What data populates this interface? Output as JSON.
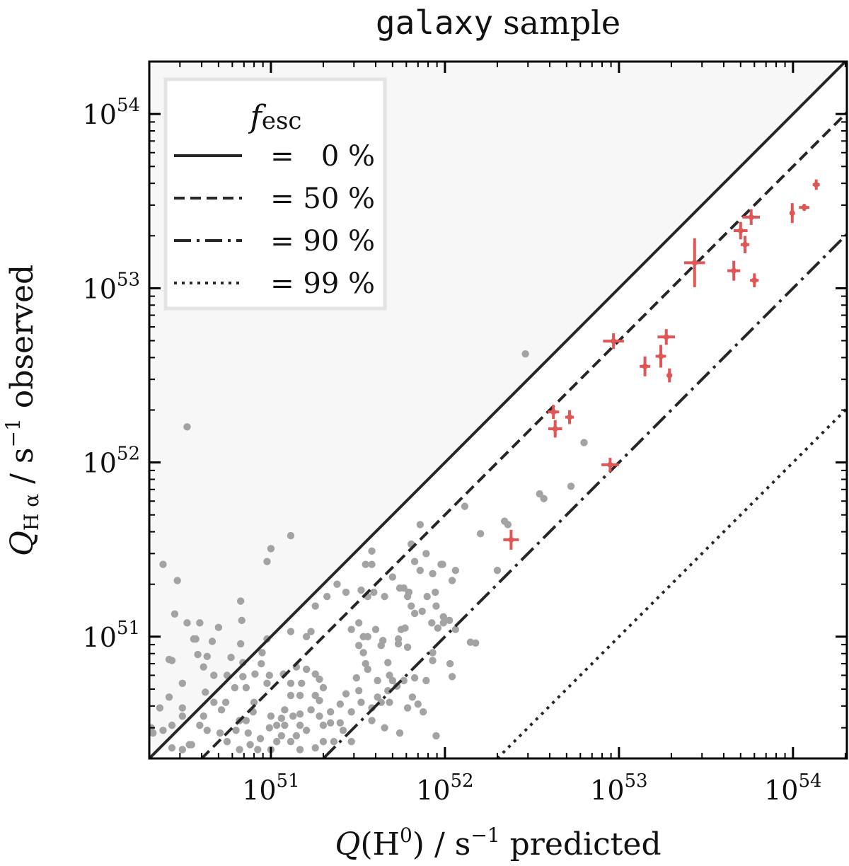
{
  "chart_data": {
    "type": "scatter",
    "title_mono": "galaxy",
    "title_rest": "sample",
    "xlabel": {
      "q": "Q",
      "paren_open": "(H",
      "sup": "0",
      "paren_close": ")",
      "unit": " / s",
      "unit_sup": "−1",
      "suffix": " predicted"
    },
    "ylabel": {
      "q": "Q",
      "sub": "H α",
      "unit": " / s",
      "unit_sup": "−1",
      "suffix": " observed"
    },
    "xscale": "log",
    "yscale": "log",
    "xlim": [
      2e+50,
      2.04e+54
    ],
    "ylim": [
      2e+50,
      2e+54
    ],
    "xticks": [
      {
        "value": 1e+51,
        "base": "10",
        "exp": "51"
      },
      {
        "value": 1e+52,
        "base": "10",
        "exp": "52"
      },
      {
        "value": 1e+53,
        "base": "10",
        "exp": "53"
      },
      {
        "value": 1e+54,
        "base": "10",
        "exp": "54"
      }
    ],
    "yticks": [
      {
        "value": 1e+51,
        "base": "10",
        "exp": "51"
      },
      {
        "value": 1e+52,
        "base": "10",
        "exp": "52"
      },
      {
        "value": 1e+53,
        "base": "10",
        "exp": "53"
      },
      {
        "value": 1e+54,
        "base": "10",
        "exp": "54"
      }
    ],
    "grid": false,
    "shaded_region": {
      "description_color": "#f7f7f7",
      "above_line_fesc": 0
    },
    "legend": {
      "placement": "top-left",
      "title_f": "f",
      "title_sub": "esc",
      "entries": [
        {
          "label": "=   0 %",
          "fesc": 0.0,
          "style": "solid"
        },
        {
          "label": "= 50 %",
          "fesc": 0.5,
          "style": "dashed"
        },
        {
          "label": "= 90 %",
          "fesc": 0.9,
          "style": "dashdot"
        },
        {
          "label": "= 99 %",
          "fesc": 0.99,
          "style": "dotted"
        }
      ]
    },
    "colors": {
      "lines": "#262626",
      "highlight": "#e05555",
      "background_points": "#a3a3a3",
      "shade": "#f7f7f7",
      "legend_border": "#e3e3e3"
    },
    "highlight_points": [
      {
        "x": 1.36e+54,
        "y": 3.93e+53,
        "xerr_dex": 0.02,
        "yerr_dex": 0.03
      },
      {
        "x": 1.16e+54,
        "y": 2.91e+53,
        "xerr_dex": 0.03,
        "yerr_dex": 0.02
      },
      {
        "x": 9.9e+53,
        "y": 2.7e+53,
        "xerr_dex": 0.012,
        "yerr_dex": 0.057
      },
      {
        "x": 5.75e+53,
        "y": 2.56e+53,
        "xerr_dex": 0.05,
        "yerr_dex": 0.045
      },
      {
        "x": 5e+53,
        "y": 2.14e+53,
        "xerr_dex": 0.04,
        "yerr_dex": 0.05
      },
      {
        "x": 5.3e+53,
        "y": 1.78e+53,
        "xerr_dex": 0.025,
        "yerr_dex": 0.05
      },
      {
        "x": 2.72e+53,
        "y": 1.4e+53,
        "xerr_dex": 0.06,
        "yerr_dex": 0.14
      },
      {
        "x": 4.57e+53,
        "y": 1.26e+53,
        "xerr_dex": 0.037,
        "yerr_dex": 0.057
      },
      {
        "x": 6e+53,
        "y": 1.11e+53,
        "xerr_dex": 0.025,
        "yerr_dex": 0.04
      },
      {
        "x": 9.3e+52,
        "y": 4.97e+52,
        "xerr_dex": 0.06,
        "yerr_dex": 0.045
      },
      {
        "x": 1.87e+53,
        "y": 5.25e+52,
        "xerr_dex": 0.05,
        "yerr_dex": 0.045
      },
      {
        "x": 1.74e+53,
        "y": 4.07e+52,
        "xerr_dex": 0.03,
        "yerr_dex": 0.065
      },
      {
        "x": 1.41e+53,
        "y": 3.56e+52,
        "xerr_dex": 0.03,
        "yerr_dex": 0.057
      },
      {
        "x": 1.95e+53,
        "y": 3.16e+52,
        "xerr_dex": 0.016,
        "yerr_dex": 0.04
      },
      {
        "x": 4.2e+52,
        "y": 1.95e+52,
        "xerr_dex": 0.033,
        "yerr_dex": 0.04
      },
      {
        "x": 5.2e+52,
        "y": 1.82e+52,
        "xerr_dex": 0.025,
        "yerr_dex": 0.04
      },
      {
        "x": 4.3e+52,
        "y": 1.56e+52,
        "xerr_dex": 0.04,
        "yerr_dex": 0.05
      },
      {
        "x": 8.9e+52,
        "y": 9.7e+51,
        "xerr_dex": 0.05,
        "yerr_dex": 0.04
      },
      {
        "x": 2.4e+52,
        "y": 3.6e+51,
        "xerr_dex": 0.045,
        "yerr_dex": 0.057
      }
    ],
    "background_points": [
      [
        2.9e+52,
        4.2e+52
      ],
      [
        3.3e+50,
        1.6e+52
      ],
      [
        6.3e+52,
        1.3e+52
      ],
      [
        5.3e+52,
        7.3e+51
      ],
      [
        3.5e+52,
        6.6e+51
      ],
      [
        3.7e+52,
        6.2e+51
      ],
      [
        1.3e+52,
        5.6e+51
      ],
      [
        2.2e+52,
        4.6e+51
      ],
      [
        2.3e+52,
        4.4e+51
      ],
      [
        1.6e+52,
        3.9e+51
      ],
      [
        2e+52,
        2.4e+51
      ],
      [
        1.3e+51,
        3.8e+51
      ],
      [
        1e+51,
        3.2e+51
      ],
      [
        9.5e+50,
        2.7e+51
      ],
      [
        2.4e+50,
        2.6e+51
      ],
      [
        2.9e+50,
        2.1e+51
      ],
      [
        6.7e+50,
        1.6e+51
      ],
      [
        9.5e+51,
        2.6e+51
      ],
      [
        7.2e+51,
        2.4e+51
      ],
      [
        6.2e+51,
        1.8e+51
      ],
      [
        8.9e+51,
        1.5e+51
      ],
      [
        5.6e+51,
        1.1e+51
      ],
      [
        1.4e+52,
        9.3e+50
      ],
      [
        9.8e+51,
        1.2e+51
      ],
      [
        8.5e+51,
        8.1e+50
      ],
      [
        2.8e+50,
        1.35e+51
      ],
      [
        3.3e+50,
        1.2e+51
      ],
      [
        3.6e+50,
        9.7e+50
      ],
      [
        2.7e+50,
        7.3e+50
      ],
      [
        2.3e+50,
        3.9e+50
      ],
      [
        2e+50,
        3e+50
      ],
      [
        3.9e+50,
        1.2e+51
      ],
      [
        5e+50,
        1.13e+51
      ],
      [
        3.7e+50,
        9.7e+50
      ],
      [
        4.6e+50,
        9.4e+50
      ],
      [
        6.8e+50,
        1.24e+51
      ],
      [
        6.7e+50,
        9.1e+50
      ],
      [
        2.6e+50,
        7.4e+50
      ],
      [
        3.8e+50,
        7.9e+50
      ],
      [
        4.3e+50,
        7.7e+50
      ],
      [
        4.1e+50,
        6.7e+50
      ],
      [
        5.9e+50,
        7.6e+50
      ],
      [
        6.9e+50,
        7.1e+50
      ],
      [
        4.7e+50,
        6e+50
      ],
      [
        5.6e+50,
        6e+50
      ],
      [
        3.1e+50,
        5.4e+50
      ],
      [
        2.6e+50,
        4.5e+50
      ],
      [
        4.2e+50,
        4.8e+50
      ],
      [
        3.1e+50,
        3.9e+50
      ],
      [
        3.1e+50,
        3.5e+50
      ],
      [
        2.7e+50,
        3.1e+50
      ],
      [
        2.4e+50,
        2.9e+50
      ],
      [
        2.7e+50,
        2.3e+50
      ],
      [
        3.5e+50,
        2.4e+50
      ],
      [
        3.9e+50,
        3.1e+50
      ],
      [
        4.3e+50,
        2.9e+50
      ],
      [
        4.7e+50,
        4.2e+50
      ],
      [
        5.5e+50,
        4.2e+50
      ],
      [
        5.2e+50,
        3.8e+50
      ],
      [
        6.9e+50,
        5.9e+50
      ],
      [
        8.1e+50,
        6.1e+50
      ],
      [
        8.8e+50,
        7e+50
      ],
      [
        8.9e+50,
        8.1e+50
      ],
      [
        9.5e+50,
        9.7e+50
      ],
      [
        1.3e+51,
        1.07e+51
      ],
      [
        1.6e+51,
        1e+51
      ],
      [
        1.7e+51,
        1.07e+51
      ],
      [
        1.8e+51,
        1.5e+51
      ],
      [
        2.1e+51,
        1.7e+51
      ],
      [
        2.4e+51,
        2e+51
      ],
      [
        2.7e+51,
        1.8e+51
      ],
      [
        3.3e+51,
        1.85e+51
      ],
      [
        3.8e+51,
        3.1e+51
      ],
      [
        3.5e+51,
        2.6e+51
      ],
      [
        3.8e+51,
        2.6e+51
      ],
      [
        3.6e+51,
        1.7e+51
      ],
      [
        3.9e+51,
        1.8e+51
      ],
      [
        4.5e+51,
        1.7e+51
      ],
      [
        5e+51,
        2.2e+51
      ],
      [
        5.5e+51,
        1.9e+51
      ],
      [
        5.8e+51,
        1.9e+51
      ],
      [
        6.2e+51,
        1.8e+51
      ],
      [
        6.1e+51,
        1.7e+51
      ],
      [
        6.4e+51,
        1.5e+51
      ],
      [
        6.4e+51,
        3.4e+51
      ],
      [
        6.7e+51,
        2.7e+51
      ],
      [
        7.8e+51,
        3e+51
      ],
      [
        7.2e+51,
        4.4e+51
      ],
      [
        8.5e+51,
        2.3e+51
      ],
      [
        9.7e+51,
        2.6e+51
      ],
      [
        1.15e+52,
        2.4e+51
      ],
      [
        1.1e+52,
        2.1e+51
      ],
      [
        8.8e+51,
        1.8e+51
      ],
      [
        7.9e+51,
        1.7e+51
      ],
      [
        7.4e+51,
        1.4e+51
      ],
      [
        6.7e+51,
        1.36e+51
      ],
      [
        8.4e+51,
        1.2e+51
      ],
      [
        9.8e+51,
        1.3e+51
      ],
      [
        1.06e+52,
        1.24e+51
      ],
      [
        9.1e+51,
        1.12e+51
      ],
      [
        1.15e+52,
        1.1e+51
      ],
      [
        1.5e+52,
        9.2e+50
      ],
      [
        1.07e+52,
        7e+50
      ],
      [
        1.1e+52,
        5.9e+50
      ],
      [
        8.5e+51,
        7.3e+50
      ],
      [
        7.8e+51,
        5.6e+50
      ],
      [
        6.7e+51,
        5.8e+50
      ],
      [
        5.9e+51,
        1.12e+51
      ],
      [
        5.4e+51,
        9.7e+50
      ],
      [
        5.4e+51,
        9.1e+50
      ],
      [
        6.1e+51,
        8.7e+50
      ],
      [
        4.4e+51,
        9.5e+50
      ],
      [
        4.3e+51,
        8.9e+50
      ],
      [
        4e+51,
        1.1e+51
      ],
      [
        3.6e+51,
        1e+51
      ],
      [
        3.4e+51,
        1e+51
      ],
      [
        3.2e+51,
        1.2e+51
      ],
      [
        2.9e+51,
        1.1e+51
      ],
      [
        3.2e+51,
        8.9e+50
      ],
      [
        3.4e+51,
        8.1e+50
      ],
      [
        3.5e+51,
        7e+50
      ],
      [
        3.6e+51,
        6.5e+50
      ],
      [
        4.7e+51,
        7.1e+50
      ],
      [
        4.8e+51,
        6e+50
      ],
      [
        5e+51,
        5.6e+50
      ],
      [
        5.8e+51,
        5.6e+50
      ],
      [
        5.3e+51,
        5.2e+50
      ],
      [
        4.7e+51,
        4.9e+50
      ],
      [
        4.1e+51,
        5.6e+50
      ],
      [
        4.1e+51,
        4.5e+50
      ],
      [
        4.3e+51,
        4.2e+50
      ],
      [
        4.8e+51,
        4.2e+50
      ],
      [
        3.8e+51,
        3.9e+50
      ],
      [
        3.2e+51,
        4.9e+50
      ],
      [
        3.1e+51,
        5.8e+50
      ],
      [
        2.7e+51,
        4.7e+50
      ],
      [
        2.5e+51,
        4.1e+50
      ],
      [
        3.3e+51,
        4.2e+50
      ],
      [
        2.9e+51,
        3.7e+50
      ],
      [
        2.5e+51,
        3.2e+50
      ],
      [
        2.2e+51,
        3.2e+50
      ],
      [
        2.2e+51,
        3.7e+50
      ],
      [
        2.6e+51,
        2.9e+50
      ],
      [
        2.9e+51,
        2.5e+50
      ],
      [
        2.3e+51,
        2.5e+50
      ],
      [
        2e+51,
        2.5e+50
      ],
      [
        3.8e+51,
        3.3e+50
      ],
      [
        4.5e+51,
        3e+50
      ],
      [
        5.5e+51,
        2.8e+50
      ],
      [
        6.1e+51,
        3.9e+50
      ],
      [
        6.5e+51,
        4.5e+50
      ],
      [
        7e+51,
        4.1e+50
      ],
      [
        7.5e+51,
        3.7e+50
      ],
      [
        8.9e+51,
        2.7e+50
      ],
      [
        6.2e+50,
        5.1e+50
      ],
      [
        7.2e+50,
        5.1e+50
      ],
      [
        8e+50,
        4.2e+50
      ],
      [
        9.5e+50,
        5.4e+50
      ],
      [
        9.8e+50,
        6e+50
      ],
      [
        7.9e+50,
        3.7e+50
      ],
      [
        7.2e+50,
        3.3e+50
      ],
      [
        6.6e+50,
        3.3e+50
      ],
      [
        6.3e+50,
        2.9e+50
      ],
      [
        7.4e+50,
        2.8e+50
      ],
      [
        8.7e+50,
        2.6e+50
      ],
      [
        9.8e+50,
        3e+50
      ],
      [
        1e+51,
        3.5e+50
      ],
      [
        1.15e+51,
        3.4e+50
      ],
      [
        1.08e+51,
        3.1e+50
      ],
      [
        1.15e+51,
        2.7e+50
      ],
      [
        1.08e+51,
        2.5e+50
      ],
      [
        1e+51,
        2.25e+50
      ],
      [
        1.2e+51,
        3.1e+50
      ],
      [
        1.3e+51,
        2.5e+50
      ],
      [
        1.34e+51,
        3.5e+50
      ],
      [
        1.2e+51,
        3.8e+50
      ],
      [
        1.3e+51,
        4.6e+50
      ],
      [
        1.47e+51,
        4.6e+50
      ],
      [
        1.5e+51,
        5.4e+50
      ],
      [
        1.3e+51,
        5.4e+50
      ],
      [
        1.18e+51,
        6.1e+50
      ],
      [
        1.4e+51,
        6.7e+50
      ],
      [
        1.6e+51,
        6.5e+50
      ],
      [
        1.8e+51,
        6.1e+50
      ],
      [
        1.9e+51,
        5.7e+50
      ],
      [
        2e+51,
        5.1e+50
      ],
      [
        1.9e+51,
        4.3e+50
      ],
      [
        1.8e+51,
        4.6e+50
      ],
      [
        1.7e+51,
        3.8e+50
      ],
      [
        1.47e+51,
        3.6e+50
      ],
      [
        1.47e+51,
        3.1e+50
      ],
      [
        1.6e+51,
        2.9e+50
      ],
      [
        1.4e+51,
        2.7e+50
      ],
      [
        1.9e+51,
        3.5e+50
      ],
      [
        2e+51,
        3.1e+50
      ],
      [
        1.8e+51,
        2.3e+50
      ],
      [
        1.47e+51,
        2.25e+50
      ],
      [
        8.4e+50,
        2.25e+50
      ],
      [
        7.6e+50,
        2.4e+50
      ],
      [
        6.6e+50,
        2.25e+50
      ],
      [
        5.1e+50,
        2.8e+50
      ],
      [
        5.6e+50,
        2.5e+50
      ],
      [
        4.1e+50,
        3.5e+50
      ],
      [
        3.4e+50,
        2.4e+50
      ],
      [
        2.05e+50,
        3e+50
      ],
      [
        2.1e+50,
        2.8e+50
      ],
      [
        3.1e+50,
        2.25e+50
      ]
    ]
  }
}
